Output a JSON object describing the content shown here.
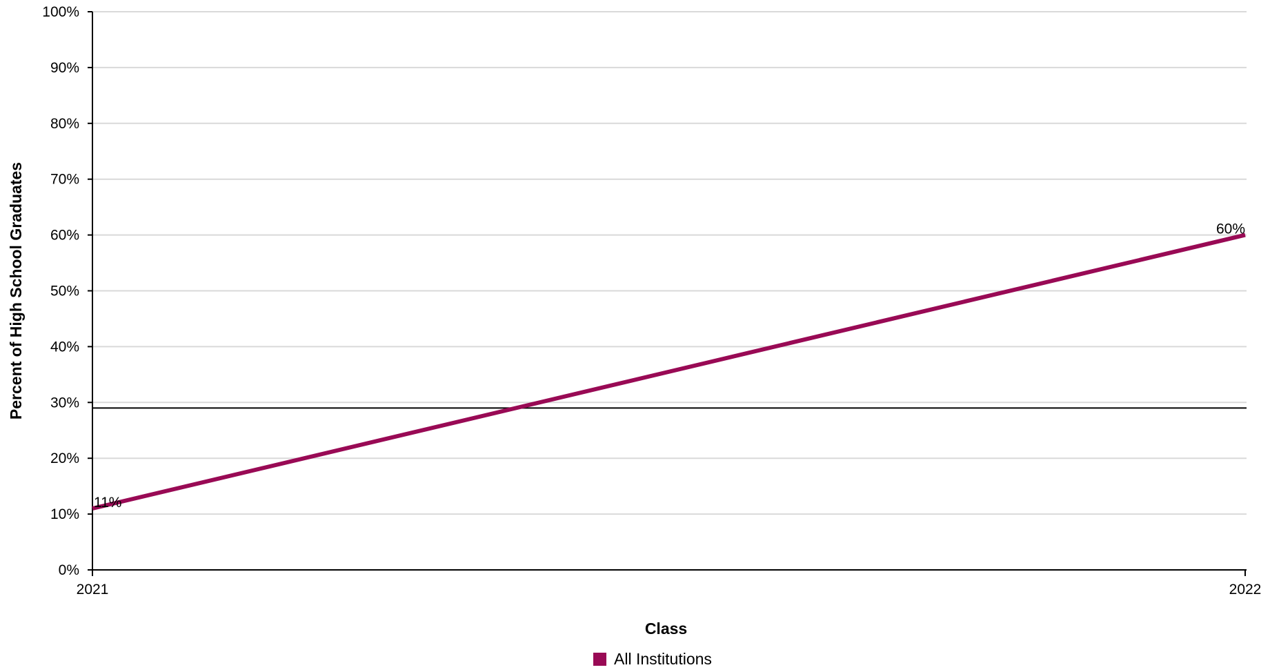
{
  "chart_data": {
    "type": "line",
    "title": "",
    "xlabel": "Class",
    "ylabel": "Percent of High School Graduates",
    "x": [
      "2021",
      "2022"
    ],
    "ylim": [
      0,
      100
    ],
    "yticks": [
      "0%",
      "10%",
      "20%",
      "30%",
      "40%",
      "50%",
      "60%",
      "70%",
      "80%",
      "90%",
      "100%"
    ],
    "yticks_values": [
      0,
      10,
      20,
      30,
      40,
      50,
      60,
      70,
      80,
      90,
      100
    ],
    "grid": true,
    "legend_position": "bottom",
    "series": [
      {
        "name": "All Institutions",
        "values": [
          11,
          60
        ],
        "labels": [
          "11%",
          "60%"
        ],
        "color": "#990a55"
      }
    ],
    "reference_line": {
      "value": 29
    }
  },
  "colors": {
    "series": "#990a55",
    "grid": "#d9d9d9",
    "axis": "#000000"
  }
}
